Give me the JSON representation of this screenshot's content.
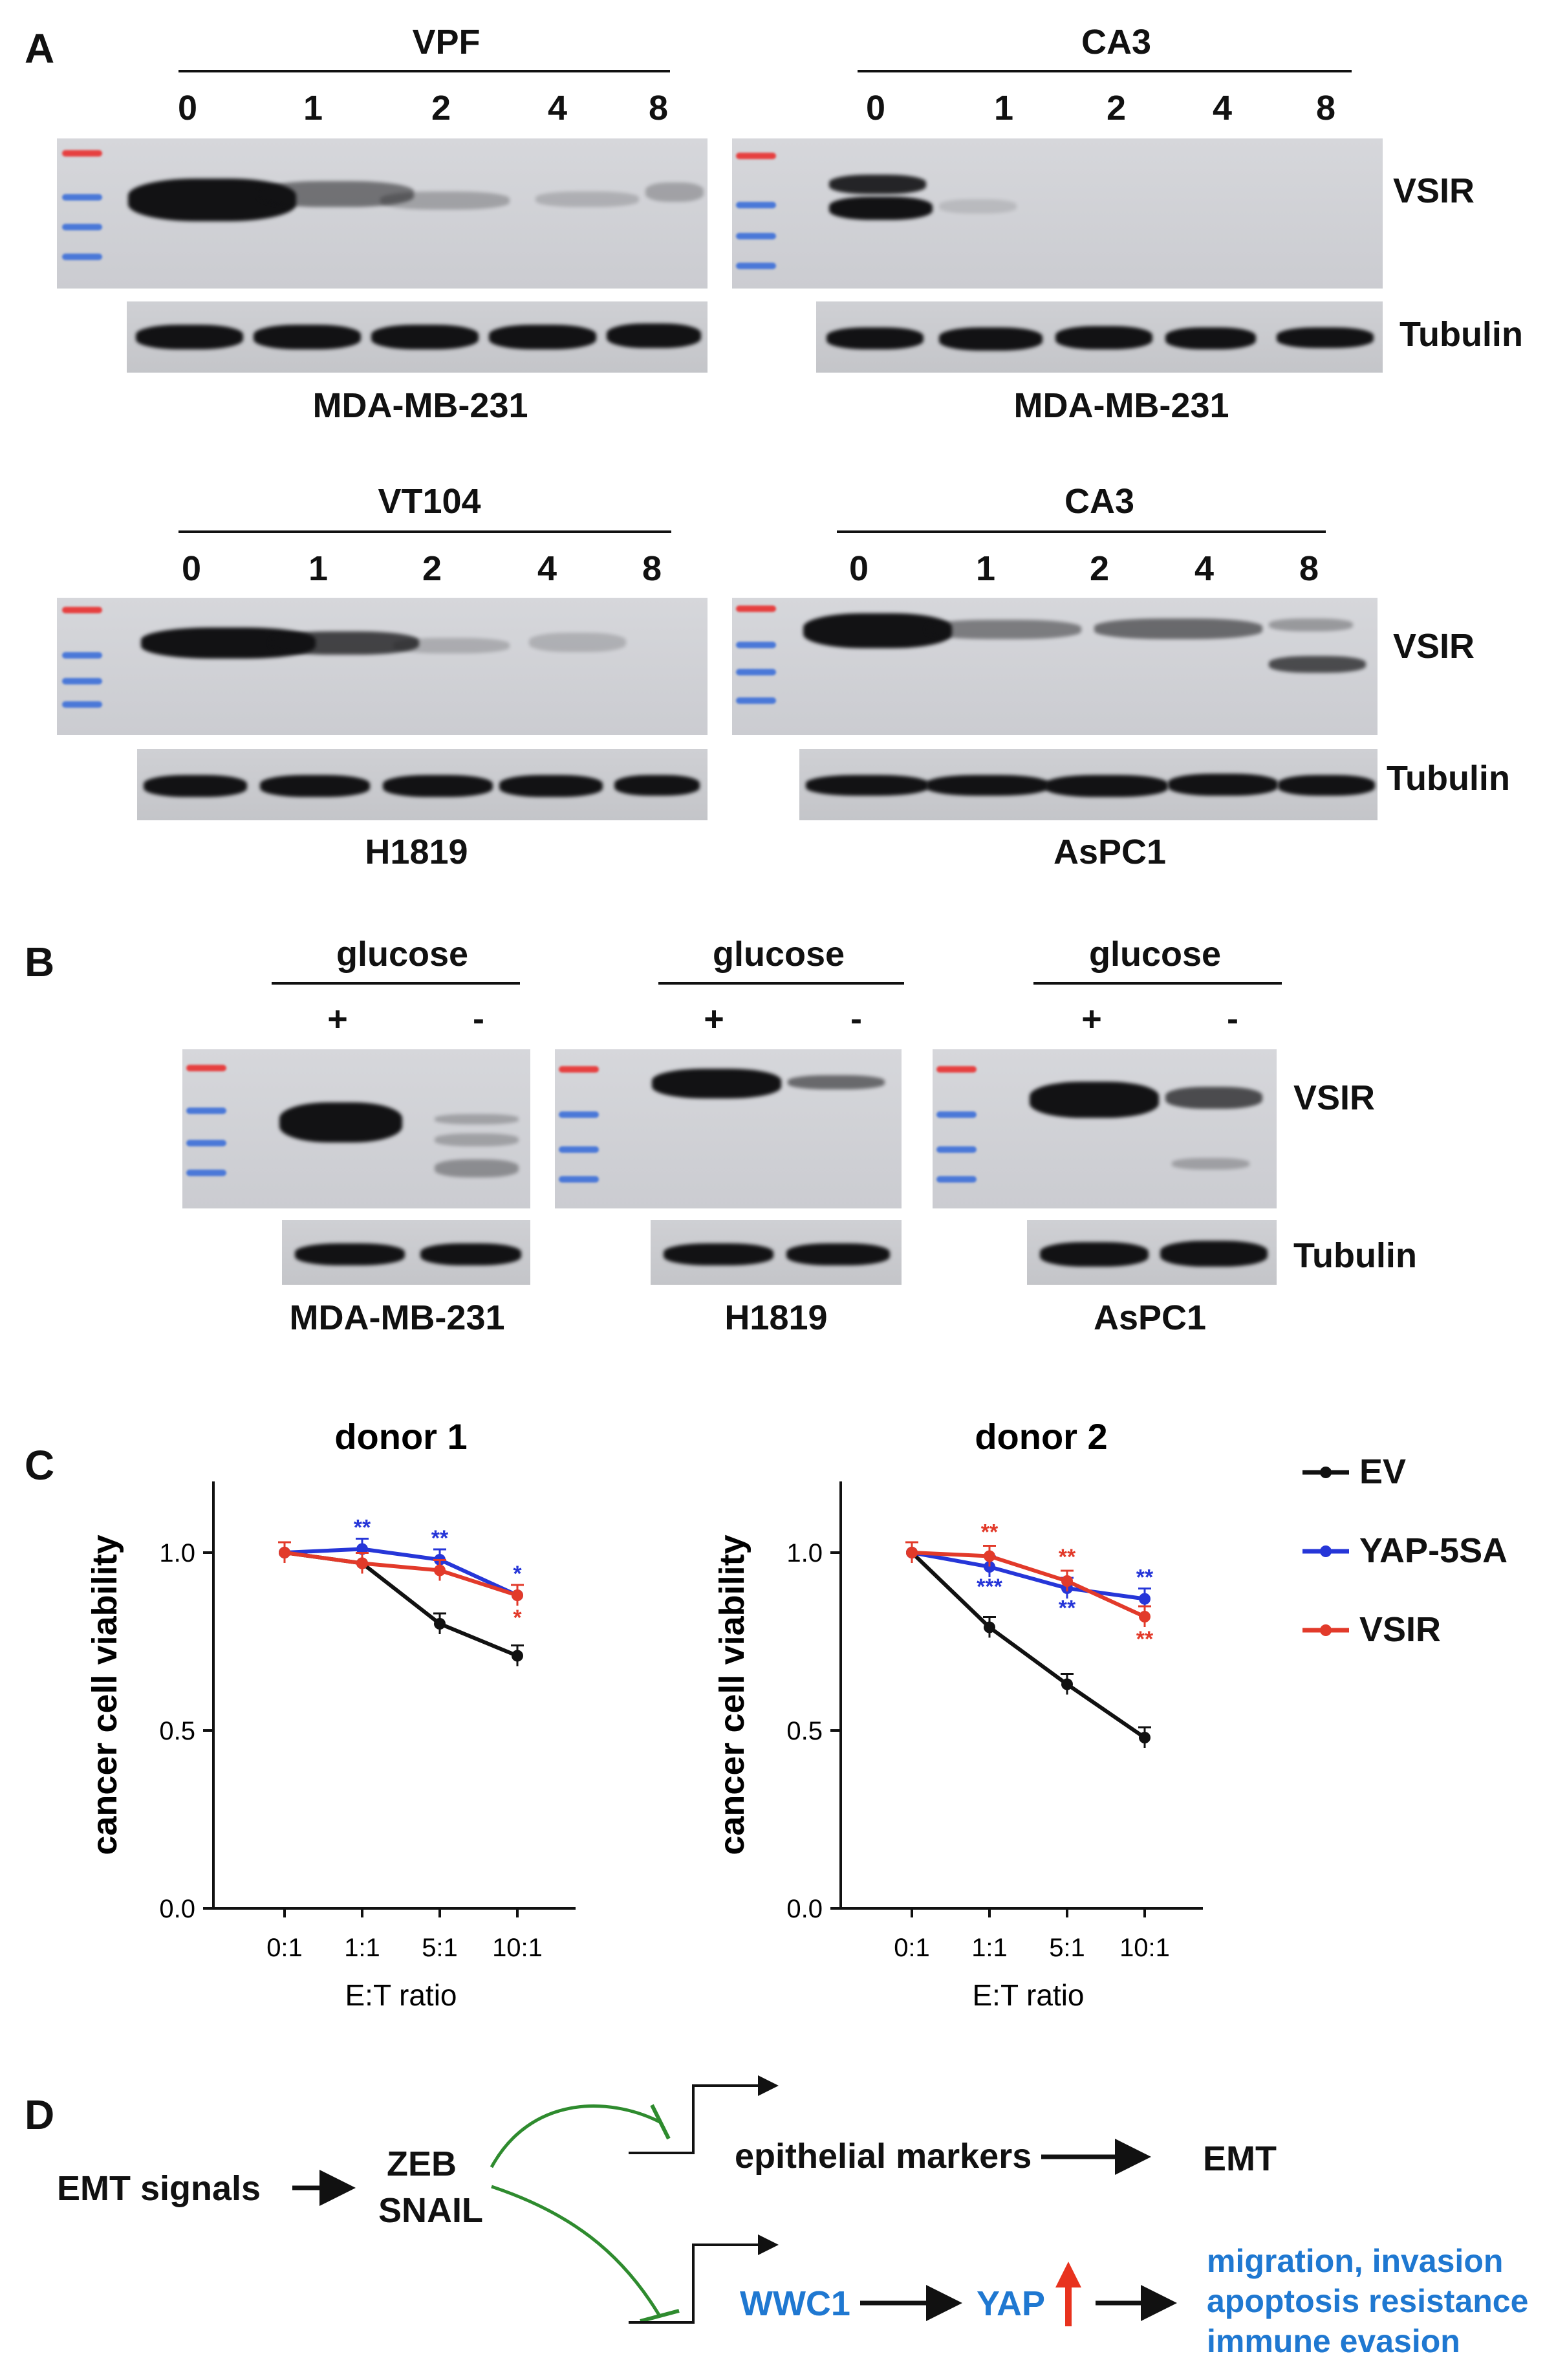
{
  "panel_a": {
    "letter": "A",
    "blots": [
      {
        "treatment": "VPF",
        "lanes": [
          "0",
          "1",
          "2",
          "4",
          "8"
        ],
        "cell_line": "MDA-MB-231"
      },
      {
        "treatment": "CA3",
        "lanes": [
          "0",
          "1",
          "2",
          "4",
          "8"
        ],
        "cell_line": "MDA-MB-231"
      },
      {
        "treatment": "VT104",
        "lanes": [
          "0",
          "1",
          "2",
          "4",
          "8"
        ],
        "cell_line": "H1819"
      },
      {
        "treatment": "CA3",
        "lanes": [
          "0",
          "1",
          "2",
          "4",
          "8"
        ],
        "cell_line": "AsPC1"
      }
    ],
    "row_labels": {
      "target": "VSIR",
      "loading": "Tubulin"
    }
  },
  "panel_b": {
    "letter": "B",
    "blots": [
      {
        "condition": "glucose",
        "lanes": [
          "+",
          "-"
        ],
        "cell_line": "MDA-MB-231"
      },
      {
        "condition": "glucose",
        "lanes": [
          "+",
          "-"
        ],
        "cell_line": "H1819"
      },
      {
        "condition": "glucose",
        "lanes": [
          "+",
          "-"
        ],
        "cell_line": "AsPC1"
      }
    ],
    "row_labels": {
      "target": "VSIR",
      "loading": "Tubulin"
    }
  },
  "panel_c": {
    "letter": "C",
    "legend": [
      "EV",
      "YAP-5SA",
      "VSIR"
    ],
    "colors": {
      "EV": "#111111",
      "YAP-5SA": "#2636d8",
      "VSIR": "#e23a2a"
    }
  },
  "chart_data": [
    {
      "type": "line",
      "title": "donor 1",
      "xlabel": "E:T ratio",
      "ylabel": "cancer cell viability",
      "categories": [
        "0:1",
        "1:1",
        "5:1",
        "10:1"
      ],
      "yticks": [
        "0.0",
        "0.5",
        "1.0"
      ],
      "ylim": [
        0,
        1.2
      ],
      "series": [
        {
          "name": "EV",
          "values": [
            1.0,
            0.97,
            0.8,
            0.71
          ]
        },
        {
          "name": "YAP-5SA",
          "values": [
            1.0,
            1.01,
            0.98,
            0.88
          ],
          "annotations": [
            "",
            "**",
            "**",
            "*"
          ]
        },
        {
          "name": "VSIR",
          "values": [
            1.0,
            0.97,
            0.95,
            0.88
          ],
          "annotations": [
            "",
            "",
            "",
            "*"
          ]
        }
      ]
    },
    {
      "type": "line",
      "title": "donor 2",
      "xlabel": "E:T ratio",
      "ylabel": "cancer cell viability",
      "categories": [
        "0:1",
        "1:1",
        "5:1",
        "10:1"
      ],
      "yticks": [
        "0.0",
        "0.5",
        "1.0"
      ],
      "ylim": [
        0,
        1.2
      ],
      "series": [
        {
          "name": "EV",
          "values": [
            1.0,
            0.79,
            0.63,
            0.48
          ]
        },
        {
          "name": "YAP-5SA",
          "values": [
            1.0,
            0.96,
            0.9,
            0.87
          ],
          "annotations": [
            "",
            "***",
            "**",
            "**"
          ]
        },
        {
          "name": "VSIR",
          "values": [
            1.0,
            0.99,
            0.92,
            0.82
          ],
          "annotations": [
            "",
            "**",
            "**",
            "**"
          ]
        }
      ]
    }
  ],
  "panel_d": {
    "letter": "D",
    "emt_signals": "EMT signals",
    "zeb": "ZEB",
    "snail": "SNAIL",
    "epithelial_markers": "epithelial markers",
    "emt": "EMT",
    "wwc1": "WWC1",
    "yap": "YAP",
    "outcomes": [
      "migration, invasion",
      "apoptosis resistance",
      "immune evasion"
    ],
    "colors": {
      "blue": "#1f78d1",
      "green": "#2e8b2e",
      "red": "#e8321e"
    }
  }
}
